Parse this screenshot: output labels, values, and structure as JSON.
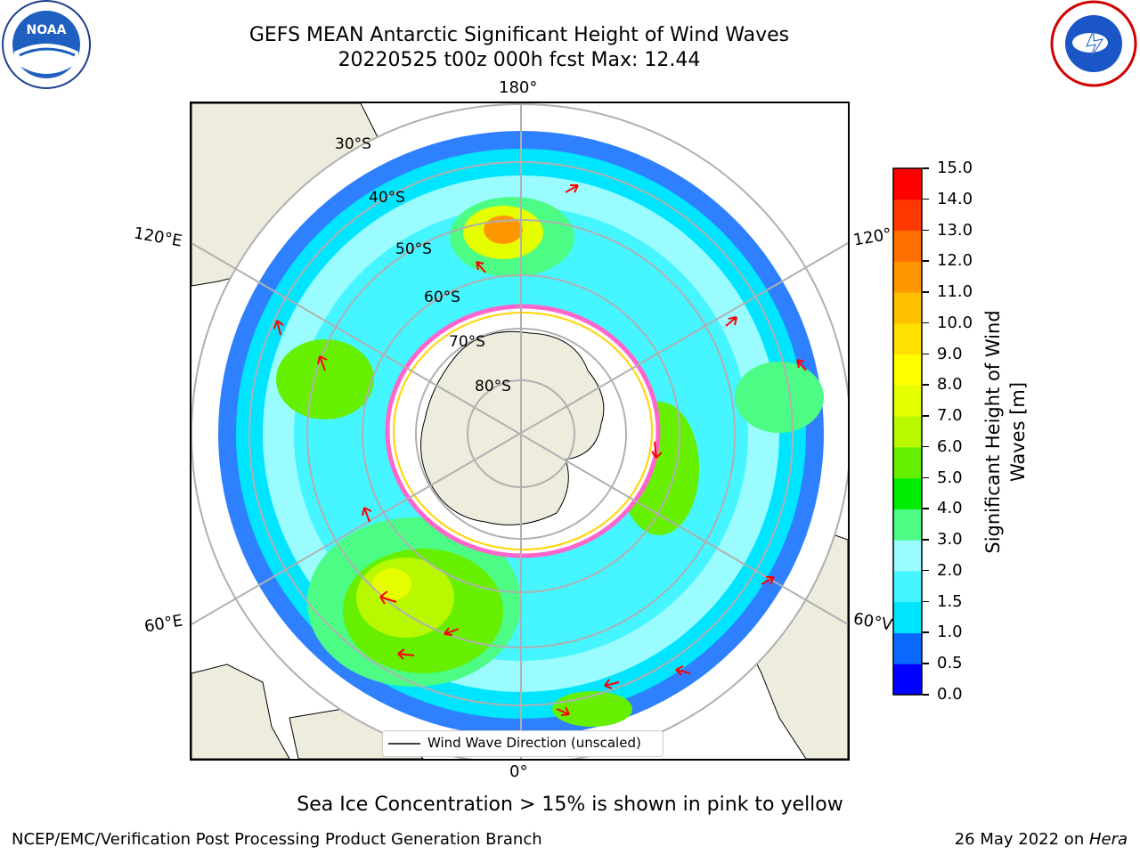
{
  "header": {
    "title_line1": "GEFS MEAN Antarctic Significant Height of Wind Waves",
    "title_line2": "20220525 t00z 000h fcst   Max: 12.44"
  },
  "logos": {
    "left": "noaa-logo",
    "right": "national-weather-service-logo"
  },
  "map": {
    "longitude_labels": {
      "top": "180°",
      "bottom": "0°",
      "upper_left": "120°E",
      "upper_right": "120°",
      "lower_left": "60°E",
      "lower_right": "60°V"
    },
    "latitude_labels": [
      "30°S",
      "40°S",
      "50°S",
      "60°S",
      "70°S",
      "80°S"
    ],
    "legend_label": "Wind Wave Direction (unscaled)",
    "colors": {
      "land": "#eeecdd",
      "ocean_no_data": "#ffffff",
      "arrow": "#ff0000",
      "graticule": "#b0b0b0"
    }
  },
  "colorbar": {
    "title": "Significant Height of Wind Waves [m]",
    "title_line1": "Significant Height of Wind",
    "title_line2": "Waves [m]",
    "ticks": [
      "0.0",
      "0.5",
      "1.0",
      "1.5",
      "2.0",
      "3.0",
      "4.0",
      "5.0",
      "6.0",
      "7.0",
      "8.0",
      "9.0",
      "10.0",
      "11.0",
      "12.0",
      "13.0",
      "14.0",
      "15.0"
    ],
    "colors": [
      "#0000ff",
      "#0a6aff",
      "#00e5ff",
      "#45f5ff",
      "#9afcff",
      "#4cfc84",
      "#00ec00",
      "#66f000",
      "#b8f800",
      "#e6ff00",
      "#ffff00",
      "#ffe000",
      "#ffc000",
      "#ff9800",
      "#ff7000",
      "#ff3800",
      "#ff0000"
    ]
  },
  "footer": {
    "sea_ice_note": "Sea Ice Concentration > 15% is shown in pink to yellow",
    "left": "NCEP/EMC/Verification Post Processing Product Generation Branch",
    "right_prefix": "26 May 2022 on ",
    "right_host": "Hera"
  }
}
